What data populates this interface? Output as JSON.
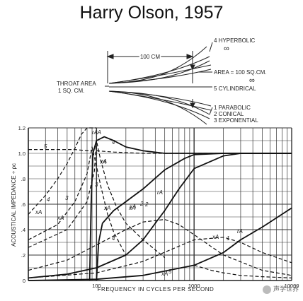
{
  "title": "Harry Olson, 1957",
  "watermark": "声学世界",
  "diagram": {
    "length_label": "100 CM",
    "throat_label_1": "THROAT AREA",
    "throat_label_2": "1 SQ. CM.",
    "area_label": "AREA = 100 SQ.CM.",
    "infinity": "∞",
    "horns": [
      "4 HYPERBOLIC",
      "5 CYLINDRICAL",
      "1 PARABOLIC",
      "2 CONICAL",
      "3 EXPONENTIAL"
    ]
  },
  "chart_data": {
    "type": "line",
    "title": "",
    "xlabel": "FREQUENCY IN CYCLES PER SECOND",
    "ylabel": "ACOUSTICAL IMPEDANCE ÷ ρc",
    "xscale": "log",
    "xlim": [
      20,
      10000
    ],
    "ylim": [
      0,
      1.2
    ],
    "xticks": [
      100,
      1000,
      10000
    ],
    "xtick_labels": [
      "100",
      "1000",
      "10000"
    ],
    "yticks": [
      0,
      0.2,
      0.4,
      0.6,
      0.8,
      1.0,
      1.2
    ],
    "ytick_labels": [
      "0",
      ".2",
      ".4",
      ".6",
      ".8",
      "1.0",
      "1.2"
    ],
    "grid": true,
    "series": [
      {
        "name": "5",
        "label": "rA",
        "style": "dashed",
        "x": [
          20,
          30,
          40,
          60,
          80,
          100,
          150,
          300,
          1000,
          10000
        ],
        "y": [
          1.03,
          1.03,
          1.03,
          1.03,
          1.02,
          1.02,
          1.01,
          1.0,
          1.0,
          1.0
        ]
      },
      {
        "name": "4",
        "label": "rA",
        "style": "solid",
        "x": [
          85,
          88,
          92,
          100,
          120,
          150,
          200,
          300,
          500,
          1000,
          10000
        ],
        "y": [
          0,
          0.6,
          1.0,
          1.1,
          1.13,
          1.1,
          1.05,
          1.02,
          1.0,
          1.0,
          1.0
        ]
      },
      {
        "name": "3",
        "label": "rA",
        "style": "solid",
        "x": [
          100,
          105,
          115,
          150,
          200,
          300,
          500,
          800,
          1000,
          2000,
          10000
        ],
        "y": [
          0,
          0.3,
          0.45,
          0.55,
          0.62,
          0.72,
          0.87,
          0.96,
          0.99,
          1.0,
          1.0
        ]
      },
      {
        "name": "2",
        "label": "rA",
        "style": "solid",
        "x": [
          20,
          50,
          100,
          200,
          300,
          500,
          700,
          1000,
          2000,
          3000,
          5000,
          10000
        ],
        "y": [
          0.02,
          0.05,
          0.1,
          0.2,
          0.32,
          0.55,
          0.72,
          0.88,
          0.98,
          1.0,
          1.0,
          1.0
        ]
      },
      {
        "name": "1",
        "label": "rA",
        "style": "solid",
        "x": [
          20,
          100,
          300,
          1000,
          2000,
          3000,
          5000,
          10000
        ],
        "y": [
          0,
          0.01,
          0.04,
          0.12,
          0.22,
          0.32,
          0.42,
          0.57
        ]
      },
      {
        "name": "5",
        "label": "xA",
        "style": "dashed",
        "x": [
          20,
          30,
          40,
          50,
          60,
          70,
          80,
          100
        ],
        "y": [
          0.52,
          0.67,
          0.8,
          0.92,
          1.04,
          1.15,
          1.2,
          1.2
        ]
      },
      {
        "name": "4",
        "label": "xA",
        "style": "dashed",
        "x": [
          20,
          40,
          60,
          80,
          90,
          100,
          110,
          130,
          150,
          200
        ],
        "y": [
          0.32,
          0.44,
          0.62,
          0.84,
          1.05,
          0.9,
          0.75,
          0.52,
          0.38,
          0.2
        ]
      },
      {
        "name": "3",
        "label": "xA",
        "style": "dashed",
        "x": [
          20,
          50,
          80,
          95,
          100,
          110,
          130,
          160,
          200,
          300,
          500
        ],
        "y": [
          0.26,
          0.4,
          0.62,
          0.86,
          1.1,
          0.95,
          0.75,
          0.58,
          0.45,
          0.32,
          0.18
        ]
      },
      {
        "name": "2",
        "label": "xA",
        "style": "dashed",
        "x": [
          20,
          50,
          100,
          200,
          300,
          500,
          700,
          1000,
          2000,
          5000,
          10000
        ],
        "y": [
          0.08,
          0.16,
          0.28,
          0.4,
          0.46,
          0.48,
          0.44,
          0.36,
          0.2,
          0.08,
          0.04
        ]
      },
      {
        "name": "1",
        "label": "xA",
        "style": "dashed",
        "x": [
          20,
          100,
          300,
          700,
          1000,
          2000,
          3000,
          5000,
          10000
        ],
        "y": [
          0.02,
          0.06,
          0.15,
          0.27,
          0.32,
          0.34,
          0.3,
          0.22,
          0.14
        ]
      },
      {
        "name": "5",
        "label": "xA",
        "style": "dashed",
        "x": [
          1000,
          1500,
          2000,
          3000,
          5000,
          10000
        ],
        "y": [
          0.12,
          0.08,
          0.06,
          0.04,
          0.03,
          0.02
        ]
      }
    ],
    "annotations": [
      "rA",
      "5",
      "rA",
      "4",
      "rA",
      "rA",
      "xA",
      "xA",
      "4",
      "3",
      "3",
      "xA",
      "xA",
      "2",
      "xA",
      "4",
      "xA",
      "1",
      "xA",
      "5",
      "rA",
      "2",
      "rA"
    ]
  }
}
